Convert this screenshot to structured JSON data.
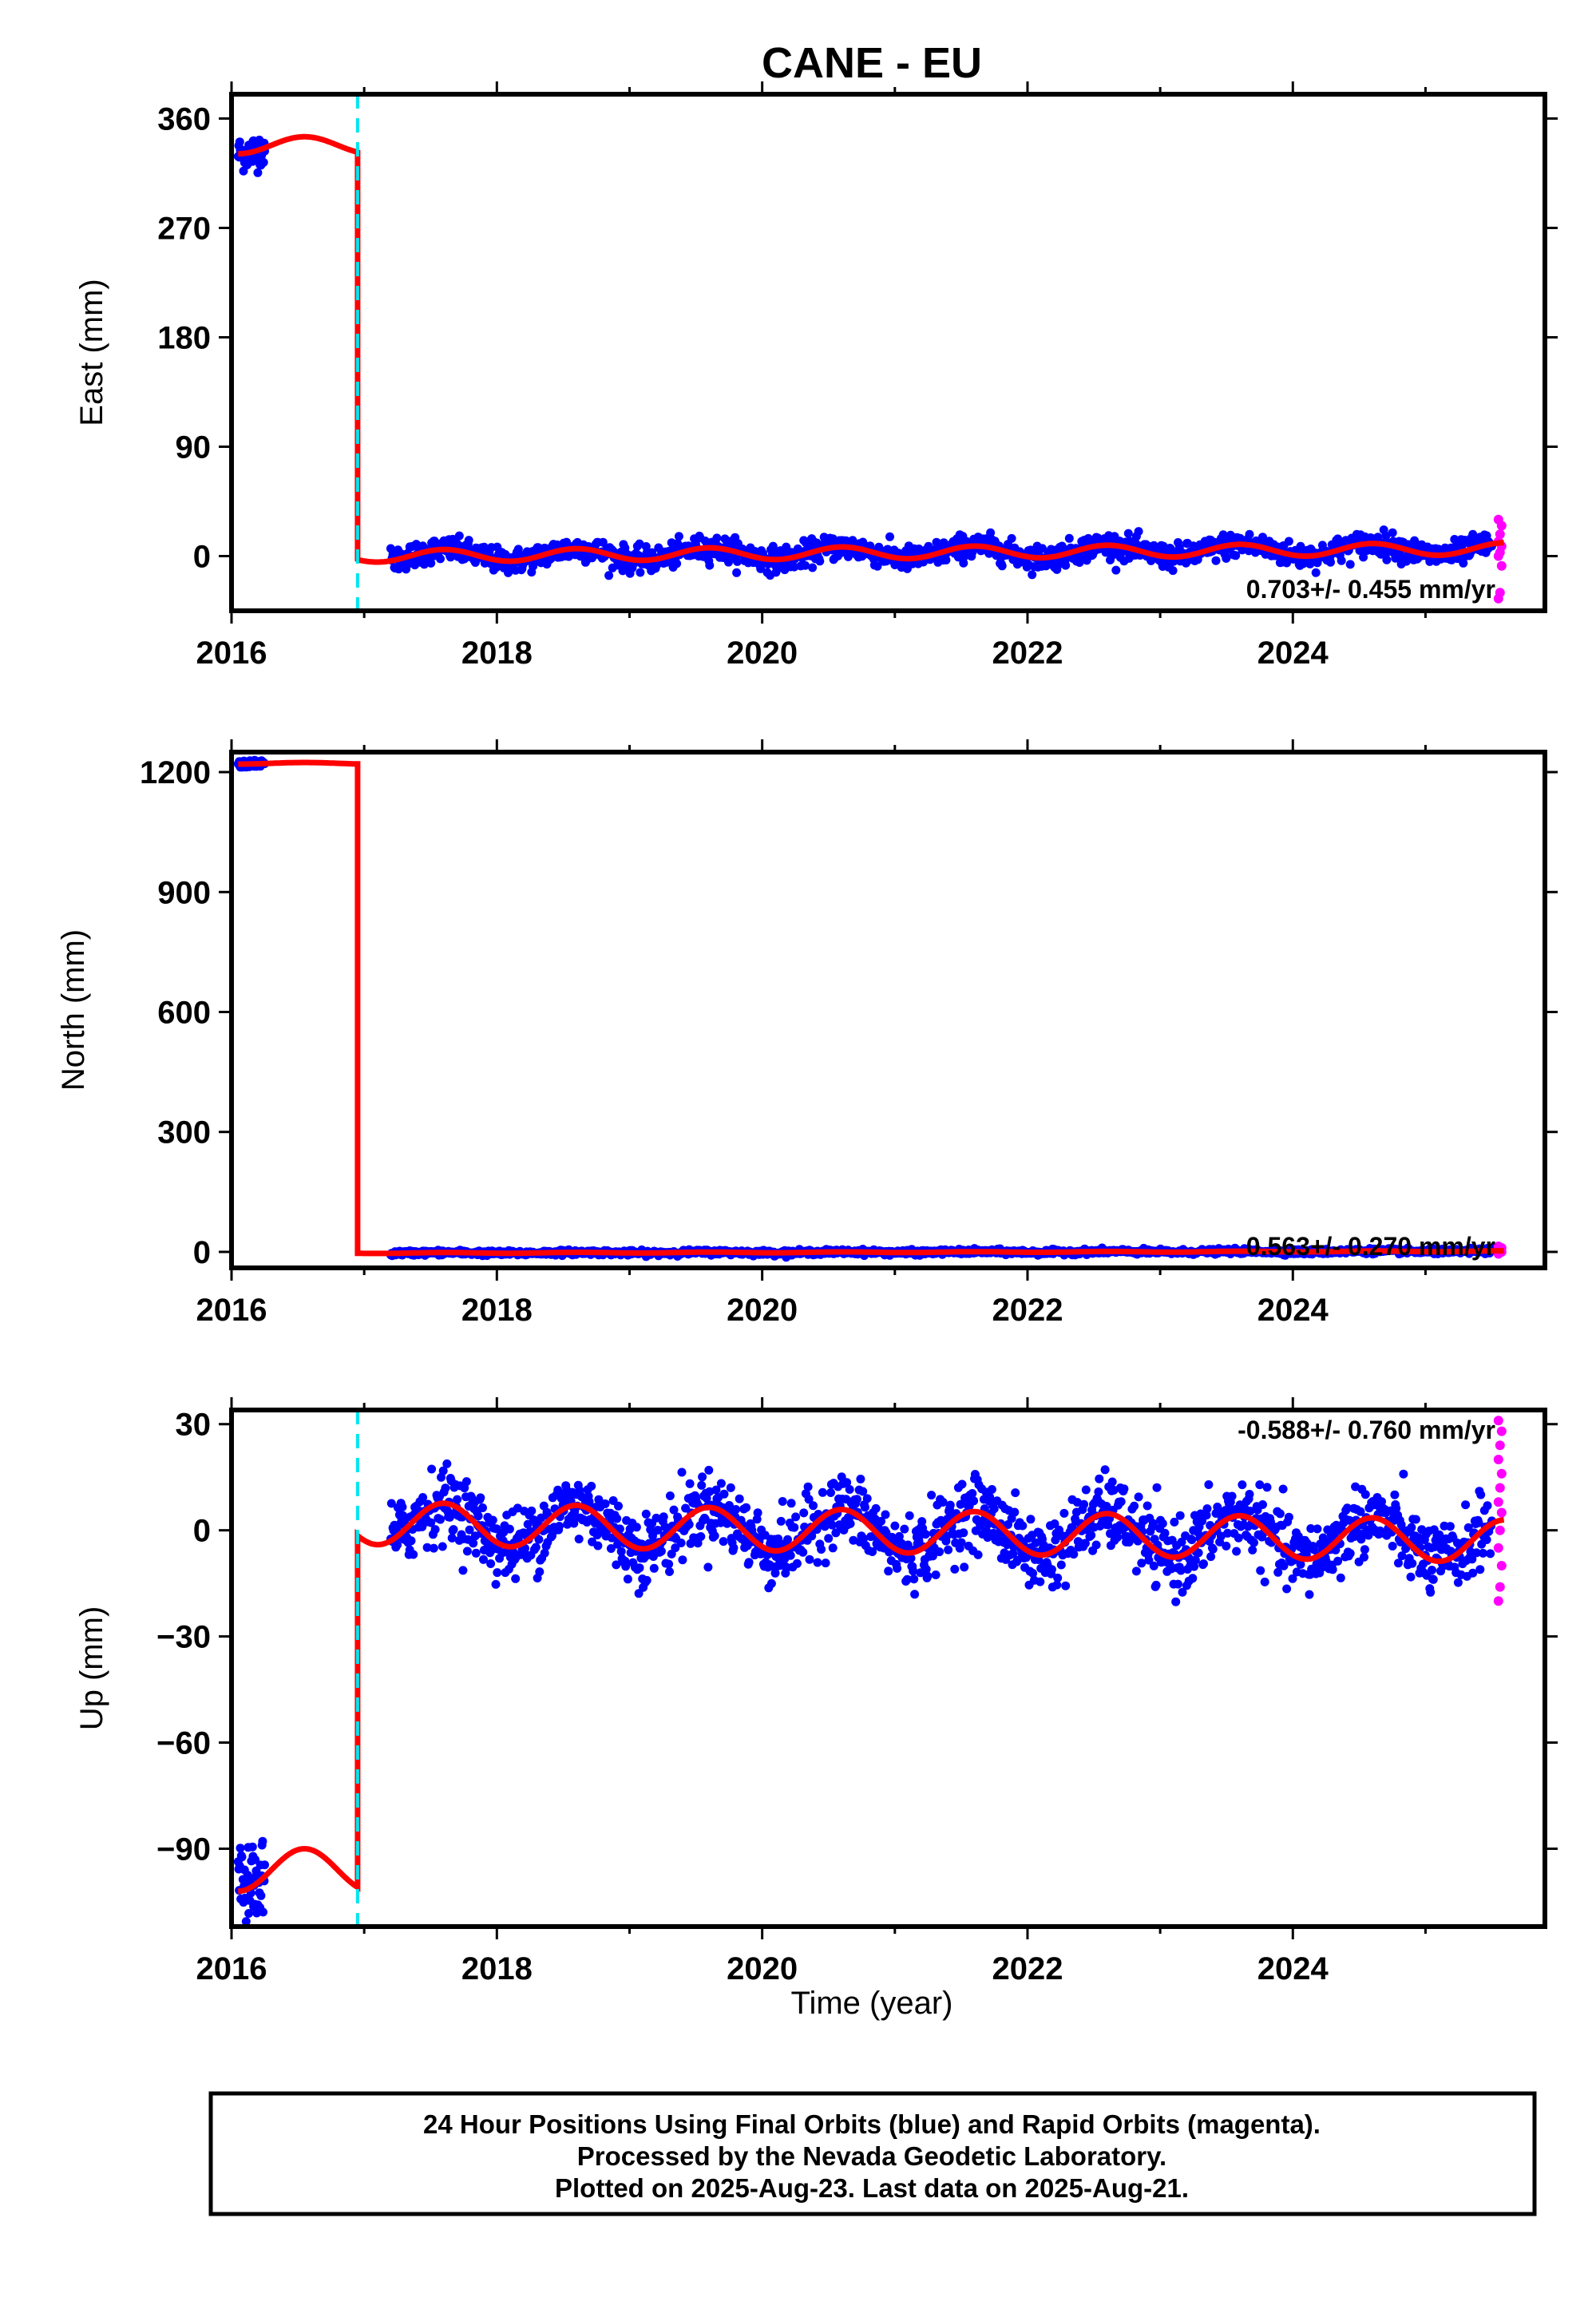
{
  "chart_data": [
    {
      "type": "scatter",
      "title": "CANE - EU",
      "ylabel": "East (mm)",
      "xlabel": "",
      "xlim": [
        2016.0,
        2025.9
      ],
      "ylim": [
        -45,
        380
      ],
      "xticks": [
        2016,
        2018,
        2020,
        2022,
        2024
      ],
      "yticks": [
        0,
        90,
        180,
        270,
        360
      ],
      "rate_label": "0.703+/- 0.455 mm/yr",
      "offset_year": 2016.95,
      "pre_offset_level": 338,
      "pre_seasonal_amp": 7,
      "post_level_start": 0,
      "post_trend_mm_per_yr": 0.703,
      "post_seasonal_amp": 5,
      "noise_final": 5,
      "rapid_y": [
        -35,
        -30,
        -8,
        0,
        3,
        8,
        12,
        18,
        25,
        30
      ],
      "grid": false
    },
    {
      "type": "scatter",
      "title": "",
      "ylabel": "North (mm)",
      "xlabel": "",
      "xlim": [
        2016.0,
        2025.9
      ],
      "ylim": [
        -40,
        1250
      ],
      "xticks": [
        2016,
        2018,
        2020,
        2022,
        2024
      ],
      "yticks": [
        0,
        300,
        600,
        900,
        1200
      ],
      "rate_label": "0.563+/- 0.270 mm/yr",
      "offset_year": 2016.95,
      "pre_offset_level": 1222,
      "pre_seasonal_amp": 2,
      "post_level_start": -3,
      "post_trend_mm_per_yr": 0.563,
      "post_seasonal_amp": 1,
      "noise_final": 3,
      "rapid_y": [
        -5,
        -2,
        0,
        3,
        6,
        10,
        14
      ],
      "grid": false
    },
    {
      "type": "scatter",
      "title": "",
      "ylabel": "Up (mm)",
      "xlabel": "Time (year)",
      "xlim": [
        2016.0,
        2025.9
      ],
      "ylim": [
        -112,
        34
      ],
      "xticks": [
        2016,
        2018,
        2020,
        2022,
        2024
      ],
      "yticks": [
        -90,
        -60,
        -30,
        0,
        30
      ],
      "ytick_labels": [
        "−90",
        "−60",
        "−30",
        "0",
        "30"
      ],
      "rate_label": "-0.588+/- 0.760 mm/yr",
      "offset_year": 2016.95,
      "pre_offset_level": -96,
      "pre_seasonal_amp": 6,
      "post_level_start": 2,
      "post_trend_mm_per_yr": -0.588,
      "post_seasonal_amp": 6,
      "noise_final": 5,
      "rapid_y": [
        -20,
        -16,
        -10,
        -5,
        0,
        5,
        8,
        12,
        16,
        20,
        24,
        28,
        31
      ],
      "grid": false
    }
  ],
  "colors": {
    "final_orbits": "#0000ff",
    "rapid_orbits": "#ff00ff",
    "model_fit": "#ff0000",
    "equipment_change": "#00e5ee"
  },
  "footer": {
    "line1": "24 Hour Positions Using Final Orbits (blue) and Rapid Orbits (magenta).",
    "line2": "Processed by the Nevada Geodetic Laboratory.",
    "line3": "Plotted on 2025-Aug-23. Last data on 2025-Aug-21."
  }
}
